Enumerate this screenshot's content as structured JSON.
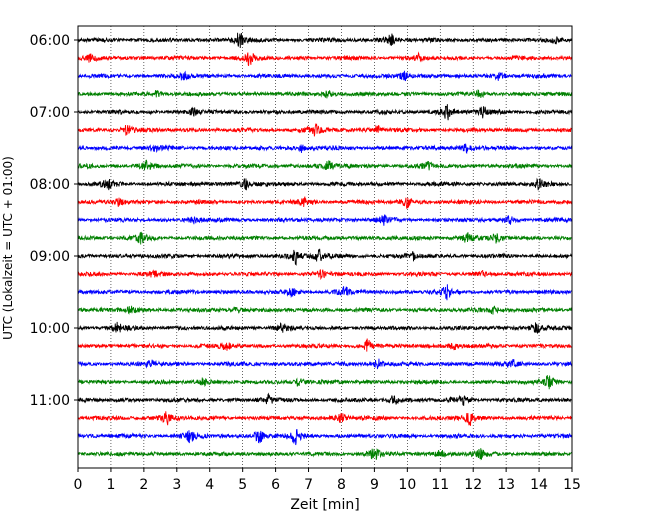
{
  "chart_data": {
    "type": "line",
    "title": "",
    "xlabel": "Zeit  [min]",
    "ylabel": "UTC (Lokalzeit = UTC + 01:00)",
    "xlim": [
      0,
      15
    ],
    "x_ticks": [
      0,
      1,
      2,
      3,
      4,
      5,
      6,
      7,
      8,
      9,
      10,
      11,
      12,
      13,
      14,
      15
    ],
    "x_tick_labels": [
      "0",
      "1",
      "2",
      "3",
      "4",
      "5",
      "6",
      "7",
      "8",
      "9",
      "10",
      "11",
      "12",
      "13",
      "14",
      "15"
    ],
    "y_tick_labels": [
      {
        "label": "06:00",
        "trace_index": 0
      },
      {
        "label": "07:00",
        "trace_index": 4
      },
      {
        "label": "08:00",
        "trace_index": 8
      },
      {
        "label": "09:00",
        "trace_index": 12
      },
      {
        "label": "10:00",
        "trace_index": 16
      },
      {
        "label": "11:00",
        "trace_index": 20
      }
    ],
    "x_grid": "dotted vertical lines at each minute",
    "trace_colors": [
      "#000000",
      "#ff0000",
      "#0000ff",
      "#008000"
    ],
    "series": [
      {
        "start": "06:00",
        "color": "#000000",
        "bursts": [
          [
            4.9,
            1.0
          ],
          [
            9.5,
            0.7
          ],
          [
            14.5,
            0.5
          ]
        ]
      },
      {
        "start": "06:15",
        "color": "#ff0000",
        "bursts": [
          [
            0.4,
            0.6
          ],
          [
            5.2,
            0.9
          ],
          [
            10.3,
            0.5
          ]
        ]
      },
      {
        "start": "06:30",
        "color": "#0000ff",
        "bursts": [
          [
            3.2,
            0.5
          ],
          [
            9.9,
            0.6
          ],
          [
            12.8,
            0.5
          ]
        ]
      },
      {
        "start": "06:45",
        "color": "#008000",
        "bursts": [
          [
            2.4,
            0.4
          ],
          [
            7.6,
            0.5
          ],
          [
            12.2,
            0.4
          ]
        ]
      },
      {
        "start": "07:00",
        "color": "#000000",
        "bursts": [
          [
            3.5,
            0.5
          ],
          [
            11.2,
            1.0
          ],
          [
            12.3,
            0.6
          ]
        ]
      },
      {
        "start": "07:15",
        "color": "#ff0000",
        "bursts": [
          [
            1.5,
            0.6
          ],
          [
            7.2,
            0.7
          ],
          [
            9.1,
            0.5
          ]
        ]
      },
      {
        "start": "07:30",
        "color": "#0000ff",
        "bursts": [
          [
            2.3,
            0.4
          ],
          [
            6.8,
            0.5
          ],
          [
            11.8,
            0.6
          ]
        ]
      },
      {
        "start": "07:45",
        "color": "#008000",
        "bursts": [
          [
            2.1,
            0.6
          ],
          [
            7.6,
            0.6
          ],
          [
            10.6,
            0.5
          ]
        ]
      },
      {
        "start": "08:00",
        "color": "#000000",
        "bursts": [
          [
            0.9,
            0.6
          ],
          [
            5.1,
            0.7
          ],
          [
            14.0,
            0.6
          ]
        ]
      },
      {
        "start": "08:15",
        "color": "#ff0000",
        "bursts": [
          [
            1.2,
            0.5
          ],
          [
            6.9,
            0.6
          ],
          [
            10.0,
            0.7
          ]
        ]
      },
      {
        "start": "08:30",
        "color": "#0000ff",
        "bursts": [
          [
            3.5,
            0.4
          ],
          [
            9.3,
            0.5
          ],
          [
            13.1,
            0.5
          ]
        ]
      },
      {
        "start": "08:45",
        "color": "#008000",
        "bursts": [
          [
            1.9,
            0.6
          ],
          [
            11.8,
            0.6
          ],
          [
            12.7,
            0.7
          ]
        ]
      },
      {
        "start": "09:00",
        "color": "#000000",
        "bursts": [
          [
            6.6,
            1.0
          ],
          [
            7.3,
            0.8
          ],
          [
            10.2,
            0.5
          ]
        ]
      },
      {
        "start": "09:15",
        "color": "#ff0000",
        "bursts": [
          [
            2.3,
            0.4
          ],
          [
            7.4,
            0.4
          ],
          [
            12.3,
            0.4
          ]
        ]
      },
      {
        "start": "09:30",
        "color": "#0000ff",
        "bursts": [
          [
            6.5,
            0.5
          ],
          [
            8.1,
            0.6
          ],
          [
            11.2,
            0.8
          ]
        ]
      },
      {
        "start": "09:45",
        "color": "#008000",
        "bursts": [
          [
            1.6,
            0.5
          ],
          [
            4.8,
            0.5
          ],
          [
            12.6,
            0.5
          ]
        ]
      },
      {
        "start": "10:00",
        "color": "#000000",
        "bursts": [
          [
            1.2,
            0.6
          ],
          [
            6.2,
            0.5
          ],
          [
            13.9,
            0.7
          ]
        ]
      },
      {
        "start": "10:15",
        "color": "#ff0000",
        "bursts": [
          [
            4.5,
            0.5
          ],
          [
            8.8,
            0.8
          ],
          [
            11.4,
            0.5
          ]
        ]
      },
      {
        "start": "10:30",
        "color": "#0000ff",
        "bursts": [
          [
            2.2,
            0.5
          ],
          [
            9.1,
            0.6
          ],
          [
            13.2,
            0.5
          ]
        ]
      },
      {
        "start": "10:45",
        "color": "#008000",
        "bursts": [
          [
            3.8,
            0.4
          ],
          [
            6.7,
            0.5
          ],
          [
            14.3,
            1.0
          ]
        ]
      },
      {
        "start": "11:00",
        "color": "#000000",
        "bursts": [
          [
            5.8,
            0.6
          ],
          [
            9.6,
            0.6
          ],
          [
            11.7,
            0.6
          ]
        ]
      },
      {
        "start": "11:15",
        "color": "#ff0000",
        "bursts": [
          [
            2.7,
            0.8
          ],
          [
            8.0,
            0.6
          ],
          [
            11.9,
            0.9
          ]
        ]
      },
      {
        "start": "11:30",
        "color": "#0000ff",
        "bursts": [
          [
            3.4,
            0.7
          ],
          [
            5.5,
            0.9
          ],
          [
            6.6,
            0.9
          ]
        ]
      },
      {
        "start": "11:45",
        "color": "#008000",
        "bursts": [
          [
            9.0,
            0.7
          ],
          [
            11.0,
            0.5
          ],
          [
            12.2,
            0.6
          ]
        ]
      }
    ]
  }
}
